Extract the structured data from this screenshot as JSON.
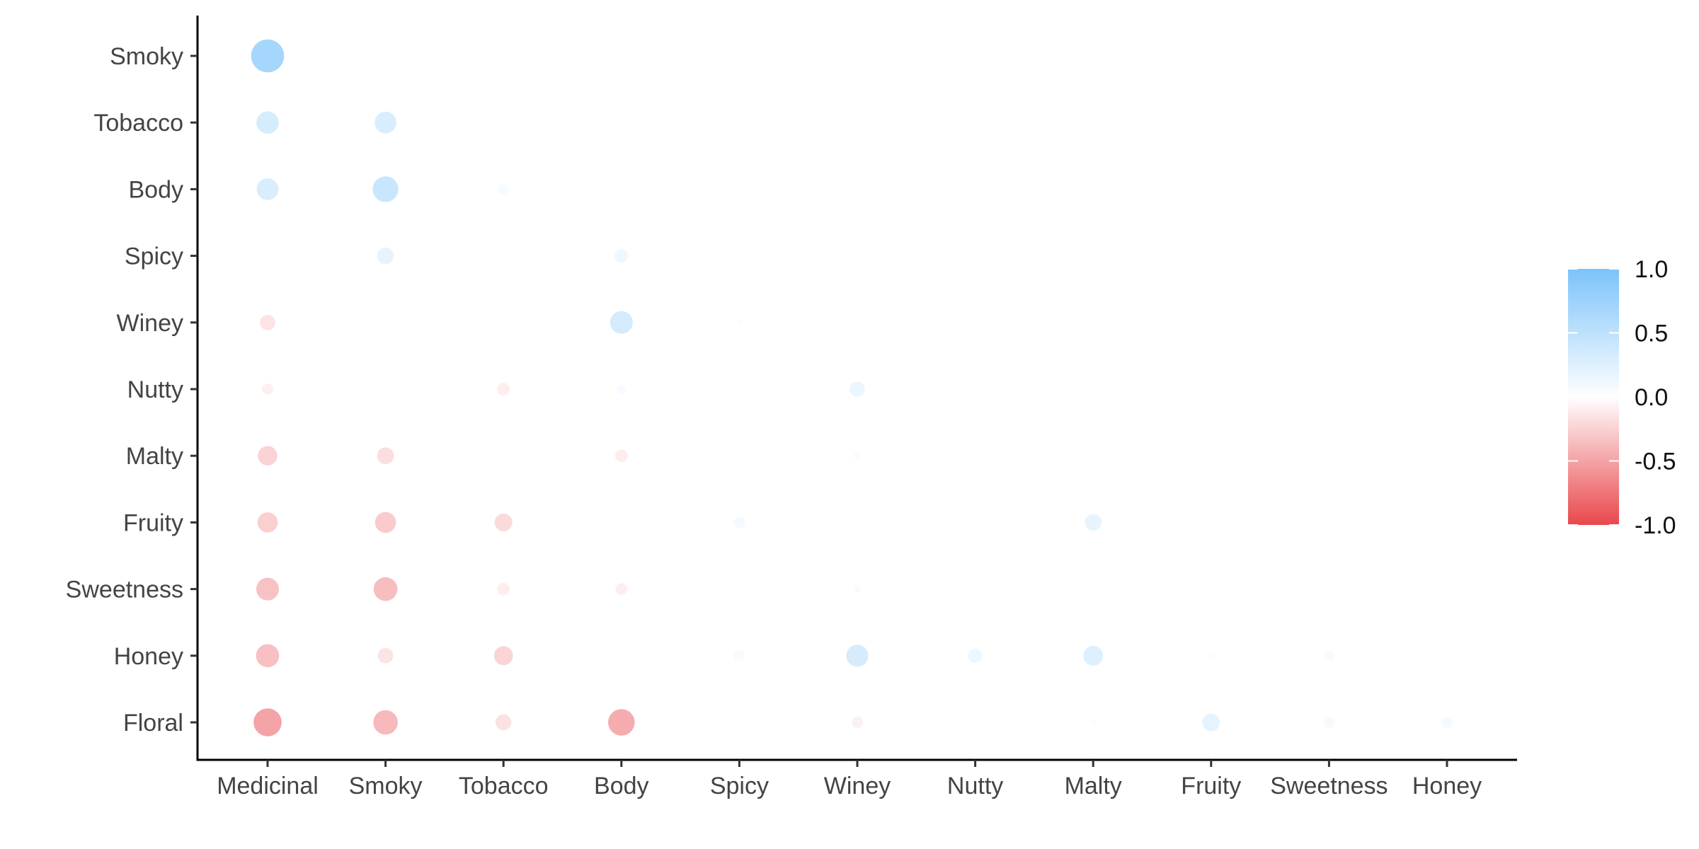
{
  "chart_data": {
    "type": "scatter",
    "subtype": "correlation-bubble-matrix",
    "title": "",
    "xlabel": "",
    "ylabel": "",
    "x_categories": [
      "Medicinal",
      "Smoky",
      "Tobacco",
      "Body",
      "Spicy",
      "Winey",
      "Nutty",
      "Malty",
      "Fruity",
      "Sweetness",
      "Honey"
    ],
    "y_categories": [
      "Smoky",
      "Tobacco",
      "Body",
      "Spicy",
      "Winey",
      "Nutty",
      "Malty",
      "Fruity",
      "Sweetness",
      "Honey",
      "Floral"
    ],
    "color_scale": {
      "low": "#E9474C",
      "mid": "#FFFFFF",
      "high": "#7CC3FA",
      "limits": [
        -1.0,
        1.0
      ],
      "breaks": [
        "1.0",
        "0.5",
        "0.0",
        "-0.5",
        "-1.0"
      ]
    },
    "grid": false,
    "legend_position": "right",
    "correlations": [
      {
        "x": "Medicinal",
        "y": "Smoky",
        "r": 0.69
      },
      {
        "x": "Medicinal",
        "y": "Tobacco",
        "r": 0.32
      },
      {
        "x": "Smoky",
        "y": "Tobacco",
        "r": 0.3
      },
      {
        "x": "Medicinal",
        "y": "Body",
        "r": 0.3
      },
      {
        "x": "Smoky",
        "y": "Body",
        "r": 0.42
      },
      {
        "x": "Tobacco",
        "y": "Body",
        "r": 0.07
      },
      {
        "x": "Medicinal",
        "y": "Spicy",
        "r": 0.0
      },
      {
        "x": "Smoky",
        "y": "Spicy",
        "r": 0.18
      },
      {
        "x": "Tobacco",
        "y": "Spicy",
        "r": 0.02
      },
      {
        "x": "Body",
        "y": "Spicy",
        "r": 0.12
      },
      {
        "x": "Medicinal",
        "y": "Winey",
        "r": -0.15
      },
      {
        "x": "Smoky",
        "y": "Winey",
        "r": -0.01
      },
      {
        "x": "Tobacco",
        "y": "Winey",
        "r": 0.0
      },
      {
        "x": "Body",
        "y": "Winey",
        "r": 0.33
      },
      {
        "x": "Spicy",
        "y": "Winey",
        "r": 0.03
      },
      {
        "x": "Medicinal",
        "y": "Nutty",
        "r": -0.08
      },
      {
        "x": "Smoky",
        "y": "Nutty",
        "r": -0.01
      },
      {
        "x": "Tobacco",
        "y": "Nutty",
        "r": -0.1
      },
      {
        "x": "Body",
        "y": "Nutty",
        "r": 0.06
      },
      {
        "x": "Spicy",
        "y": "Nutty",
        "r": 0.01
      },
      {
        "x": "Winey",
        "y": "Nutty",
        "r": 0.15
      },
      {
        "x": "Medicinal",
        "y": "Malty",
        "r": -0.24
      },
      {
        "x": "Smoky",
        "y": "Malty",
        "r": -0.18
      },
      {
        "x": "Tobacco",
        "y": "Malty",
        "r": 0.0
      },
      {
        "x": "Body",
        "y": "Malty",
        "r": -0.1
      },
      {
        "x": "Spicy",
        "y": "Malty",
        "r": 0.0
      },
      {
        "x": "Winey",
        "y": "Malty",
        "r": -0.03
      },
      {
        "x": "Nutty",
        "y": "Malty",
        "r": 0.01
      },
      {
        "x": "Medicinal",
        "y": "Fruity",
        "r": -0.26
      },
      {
        "x": "Smoky",
        "y": "Fruity",
        "r": -0.28
      },
      {
        "x": "Tobacco",
        "y": "Fruity",
        "r": -0.2
      },
      {
        "x": "Body",
        "y": "Fruity",
        "r": 0.0
      },
      {
        "x": "Spicy",
        "y": "Fruity",
        "r": 0.08
      },
      {
        "x": "Winey",
        "y": "Fruity",
        "r": 0.01
      },
      {
        "x": "Nutty",
        "y": "Fruity",
        "r": 0.01
      },
      {
        "x": "Malty",
        "y": "Fruity",
        "r": 0.18
      },
      {
        "x": "Medicinal",
        "y": "Sweetness",
        "r": -0.33
      },
      {
        "x": "Smoky",
        "y": "Sweetness",
        "r": -0.36
      },
      {
        "x": "Tobacco",
        "y": "Sweetness",
        "r": -0.1
      },
      {
        "x": "Body",
        "y": "Sweetness",
        "r": -0.09
      },
      {
        "x": "Spicy",
        "y": "Sweetness",
        "r": 0.0
      },
      {
        "x": "Winey",
        "y": "Sweetness",
        "r": -0.03
      },
      {
        "x": "Nutty",
        "y": "Sweetness",
        "r": -0.01
      },
      {
        "x": "Medicinal",
        "y": "Honey",
        "r": -0.34
      },
      {
        "x": "Smoky",
        "y": "Honey",
        "r": -0.15
      },
      {
        "x": "Tobacco",
        "y": "Honey",
        "r": -0.23
      },
      {
        "x": "Body",
        "y": "Honey",
        "r": 0.01
      },
      {
        "x": "Spicy",
        "y": "Honey",
        "r": 0.07
      },
      {
        "x": "Winey",
        "y": "Honey",
        "r": 0.31
      },
      {
        "x": "Nutty",
        "y": "Honey",
        "r": 0.13
      },
      {
        "x": "Malty",
        "y": "Honey",
        "r": 0.25
      },
      {
        "x": "Fruity",
        "y": "Honey",
        "r": 0.04
      },
      {
        "x": "Sweetness",
        "y": "Honey",
        "r": 0.07
      },
      {
        "x": "Medicinal",
        "y": "Floral",
        "r": -0.5
      },
      {
        "x": "Smoky",
        "y": "Floral",
        "r": -0.38
      },
      {
        "x": "Tobacco",
        "y": "Floral",
        "r": -0.16
      },
      {
        "x": "Body",
        "y": "Floral",
        "r": -0.45
      },
      {
        "x": "Spicy",
        "y": "Floral",
        "r": 0.0
      },
      {
        "x": "Winey",
        "y": "Floral",
        "r": -0.08
      },
      {
        "x": "Nutty",
        "y": "Floral",
        "r": 0.0
      },
      {
        "x": "Malty",
        "y": "Floral",
        "r": 0.03
      },
      {
        "x": "Fruity",
        "y": "Floral",
        "r": 0.2
      },
      {
        "x": "Sweetness",
        "y": "Floral",
        "r": 0.08
      },
      {
        "x": "Honey",
        "y": "Floral",
        "r": 0.08
      }
    ]
  }
}
